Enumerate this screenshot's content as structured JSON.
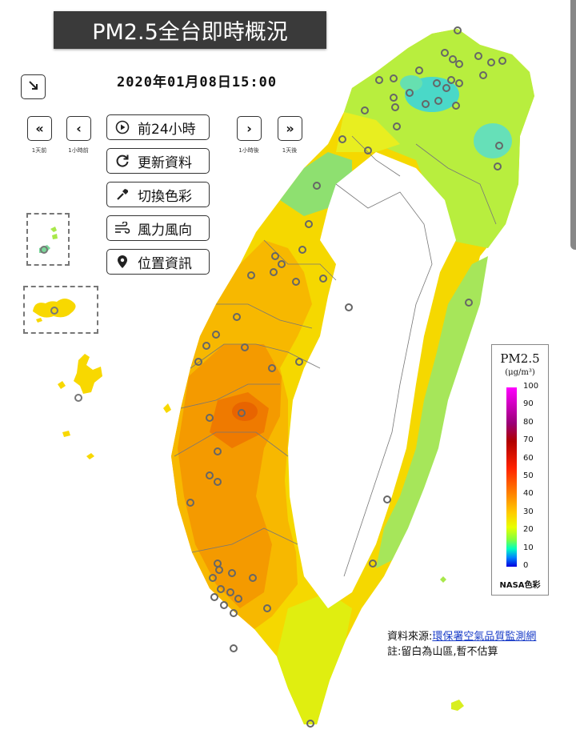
{
  "title": "PM2.5全台即時概況",
  "timestamp": "2020年01月08日15:00",
  "icons": {
    "collapse": "arrow-down-right-icon",
    "prev_day": "double-chevron-left-icon",
    "prev_hour": "chevron-left-icon",
    "next_hour": "chevron-right-icon",
    "next_day": "double-chevron-right-icon",
    "play": "play-circle-icon",
    "refresh": "refresh-icon",
    "color": "eyedropper-icon",
    "wind": "wind-icon",
    "location": "map-pin-icon"
  },
  "nav": {
    "prev_day_label": "1天前",
    "prev_hour_label": "1小時前",
    "next_hour_label": "1小時後",
    "next_day_label": "1天後"
  },
  "menu": {
    "play_24h": "前24小時",
    "refresh": "更新資料",
    "switch_color": "切換色彩",
    "wind": "風力風向",
    "location": "位置資訊"
  },
  "legend": {
    "title": "PM2.5",
    "unit": "(μg/m³)",
    "ticks": [
      "100",
      "90",
      "80",
      "70",
      "60",
      "50",
      "40",
      "30",
      "20",
      "10",
      "0"
    ],
    "footer": "NASA色彩"
  },
  "source": {
    "label": "資料來源:",
    "link_text": "環保署空氣品質監測網",
    "note": "註:留白為山區,暫不估算"
  },
  "colors": {
    "banner": "#3a3a3a",
    "high": "#f07800",
    "mid": "#f5d400",
    "low": "#a8e84a",
    "clean": "#30d8c0",
    "link": "#1a3dc8"
  }
}
